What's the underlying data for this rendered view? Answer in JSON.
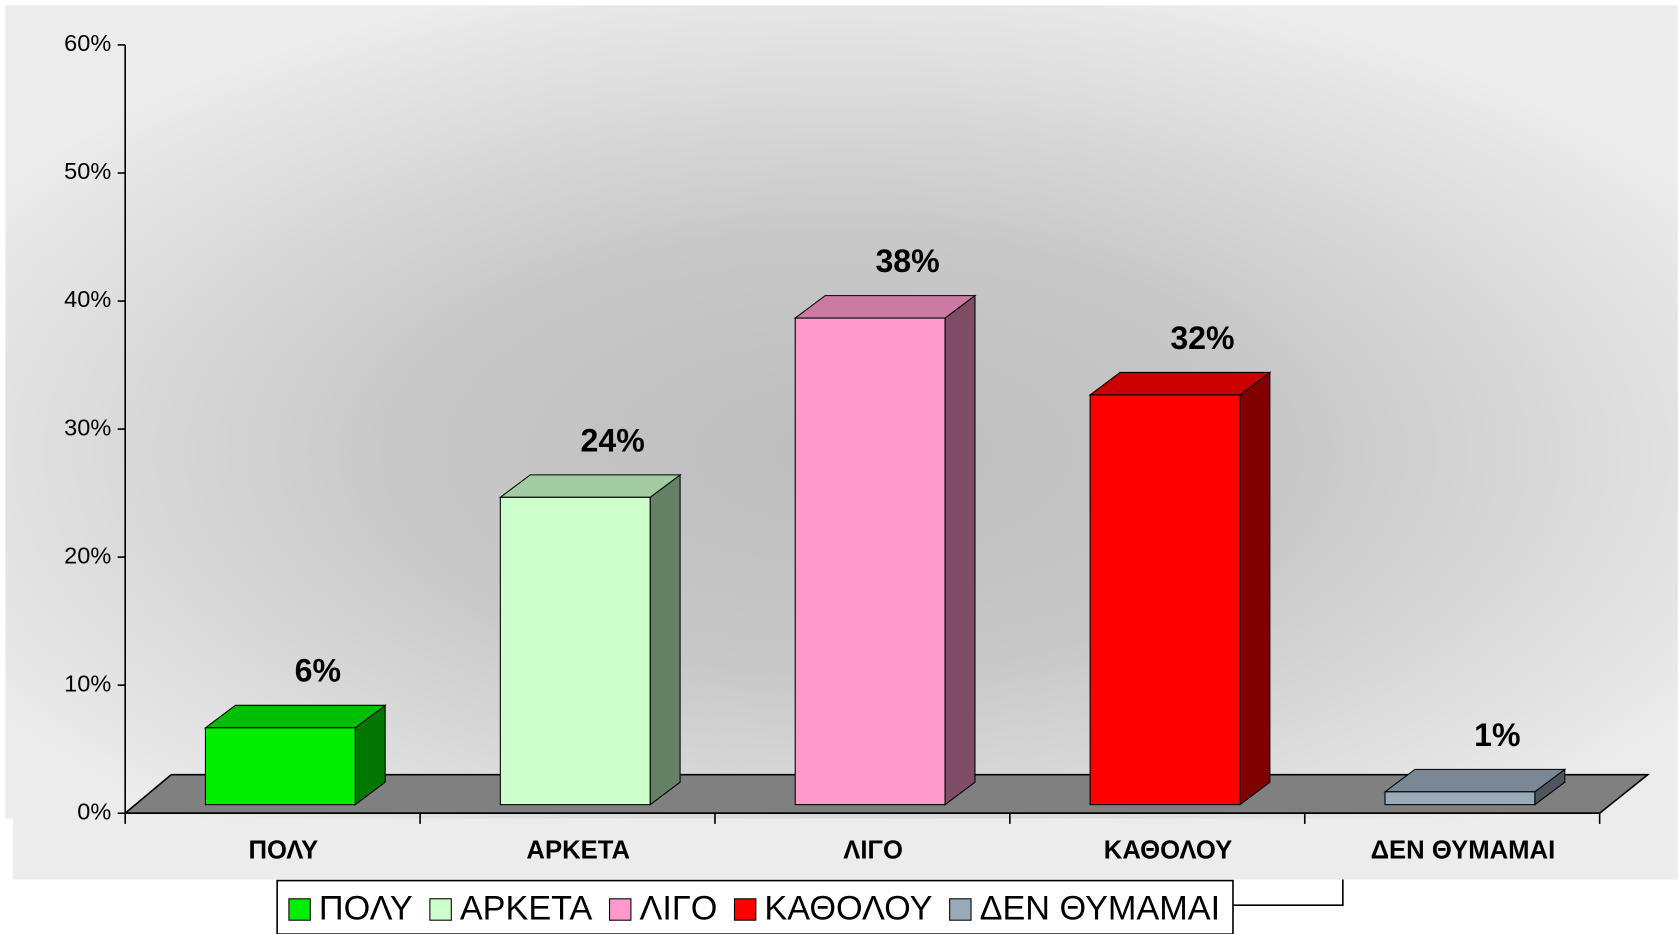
{
  "chart_data": {
    "type": "bar3d",
    "categories": [
      "ΠΟΛΥ",
      "ΑΡΚΕΤΑ",
      "ΛΙΓΟ",
      "ΚΑΘΟΛΟΥ",
      "ΔΕΝ ΘΥΜΑΜΑΙ"
    ],
    "values": [
      6,
      24,
      38,
      32,
      1
    ],
    "value_labels": [
      "6%",
      "24%",
      "38%",
      "32%",
      "1%"
    ],
    "colors": [
      "#00ee00",
      "#ccffcc",
      "#ff99cc",
      "#ff0000",
      "#99aabb"
    ],
    "ylim": [
      0,
      60
    ],
    "yticks": [
      {
        "value": 0,
        "label": "0%"
      },
      {
        "value": 10,
        "label": "10%"
      },
      {
        "value": 20,
        "label": "20%"
      },
      {
        "value": 30,
        "label": "30%"
      },
      {
        "value": 40,
        "label": "40%"
      },
      {
        "value": 50,
        "label": "50%"
      },
      {
        "value": 60,
        "label": "60%"
      }
    ],
    "legend": "bottom"
  }
}
